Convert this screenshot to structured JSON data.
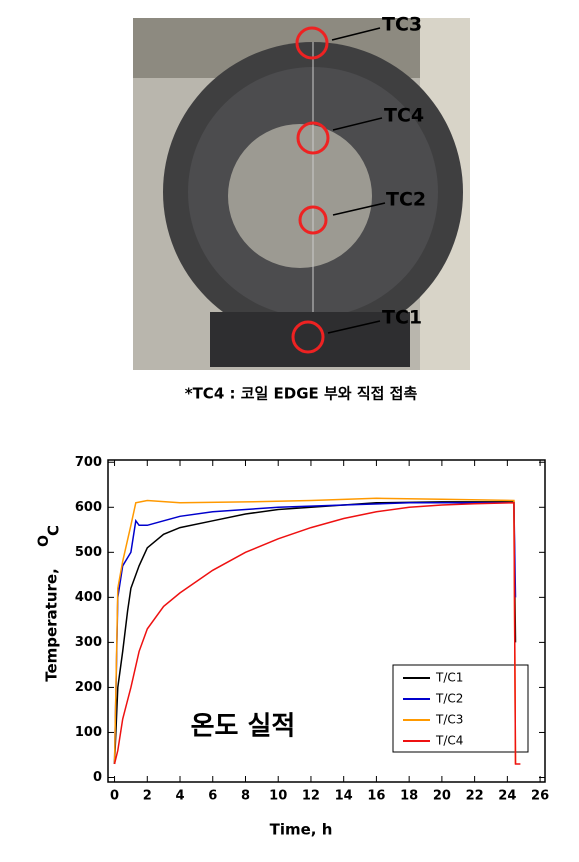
{
  "photo": {
    "labels": [
      "TC3",
      "TC4",
      "TC2",
      "TC1"
    ],
    "caption": "*TC4 : 코일 EDGE 부와 직접 접촉"
  },
  "chart_data": {
    "type": "line",
    "xlabel": "Time,  h",
    "ylabel": "Temperature,",
    "ylabel_super": "O",
    "ylabel_unit": "C",
    "annotation": "온도 실적",
    "xlim": [
      -0.4,
      26.3
    ],
    "ylim": [
      -10,
      705
    ],
    "xticks": [
      0,
      2,
      4,
      6,
      8,
      10,
      12,
      14,
      16,
      18,
      20,
      22,
      24,
      26
    ],
    "yticks": [
      0,
      100,
      200,
      300,
      400,
      500,
      600,
      700
    ],
    "series": [
      {
        "name": "T/C1",
        "color": "#000000",
        "x": [
          0,
          0.2,
          0.5,
          0.8,
          1,
          1.5,
          2,
          3,
          4,
          6,
          8,
          10,
          12,
          14,
          16,
          20,
          24,
          24.4,
          24.5
        ],
        "values": [
          30,
          200,
          280,
          370,
          420,
          470,
          510,
          540,
          555,
          570,
          585,
          595,
          600,
          605,
          610,
          612,
          612,
          612,
          300
        ]
      },
      {
        "name": "T/C2",
        "color": "#0000cc",
        "x": [
          0,
          0.2,
          0.5,
          1,
          1.3,
          1.5,
          2,
          3,
          4,
          6,
          8,
          10,
          14,
          18,
          24.4,
          24.5
        ],
        "values": [
          30,
          400,
          470,
          500,
          570,
          560,
          560,
          570,
          580,
          590,
          595,
          600,
          605,
          610,
          610,
          400
        ]
      },
      {
        "name": "T/C3",
        "color": "#ff9900",
        "x": [
          0,
          0.2,
          0.5,
          1,
          1.3,
          2,
          4,
          8,
          12,
          16,
          20,
          24.4,
          24.5
        ],
        "values": [
          30,
          420,
          480,
          560,
          610,
          615,
          610,
          612,
          615,
          620,
          618,
          615,
          30
        ]
      },
      {
        "name": "T/C4",
        "color": "#ee1111",
        "x": [
          0,
          0.2,
          0.5,
          1,
          1.5,
          2,
          3,
          4,
          6,
          8,
          10,
          12,
          14,
          16,
          18,
          20,
          22,
          24.4,
          24.5,
          24.8
        ],
        "values": [
          30,
          60,
          130,
          200,
          280,
          330,
          380,
          410,
          460,
          500,
          530,
          555,
          575,
          590,
          600,
          605,
          608,
          610,
          30,
          30
        ]
      }
    ]
  }
}
